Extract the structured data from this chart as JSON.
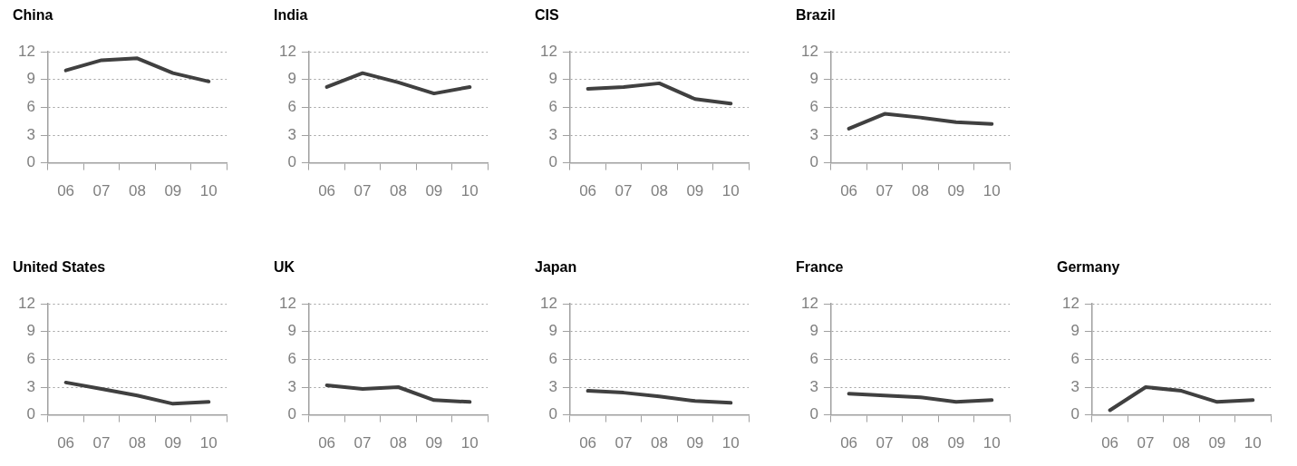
{
  "chart_data": [
    {
      "type": "line",
      "title": "China",
      "categories": [
        "06",
        "07",
        "08",
        "09",
        "10"
      ],
      "series": [
        {
          "color": "#404040",
          "values": [
            10.0,
            11.1,
            11.3,
            9.7,
            8.8
          ]
        }
      ],
      "ylim": [
        0,
        12
      ],
      "yticks": [
        0,
        3,
        6,
        9,
        12
      ],
      "grid": "y",
      "legend": false,
      "marker": "none",
      "line_style": "solid"
    },
    {
      "type": "line",
      "title": "India",
      "categories": [
        "06",
        "07",
        "08",
        "09",
        "10"
      ],
      "series": [
        {
          "color": "#404040",
          "values": [
            8.2,
            9.7,
            8.7,
            7.5,
            8.2
          ]
        }
      ],
      "ylim": [
        0,
        12
      ],
      "yticks": [
        0,
        3,
        6,
        9,
        12
      ],
      "grid": "y",
      "legend": false,
      "marker": "none",
      "line_style": "solid"
    },
    {
      "type": "line",
      "title": "CIS",
      "categories": [
        "06",
        "07",
        "08",
        "09",
        "10"
      ],
      "series": [
        {
          "color": "#404040",
          "values": [
            8.0,
            8.2,
            8.6,
            6.9,
            6.4
          ]
        }
      ],
      "ylim": [
        0,
        12
      ],
      "yticks": [
        0,
        3,
        6,
        9,
        12
      ],
      "grid": "y",
      "legend": false,
      "marker": "none",
      "line_style": "solid"
    },
    {
      "type": "line",
      "title": "Brazil",
      "categories": [
        "06",
        "07",
        "08",
        "09",
        "10"
      ],
      "series": [
        {
          "color": "#404040",
          "values": [
            3.7,
            5.3,
            4.9,
            4.4,
            4.2
          ]
        }
      ],
      "ylim": [
        0,
        12
      ],
      "yticks": [
        0,
        3,
        6,
        9,
        12
      ],
      "grid": "y",
      "legend": false,
      "marker": "none",
      "line_style": "solid"
    },
    {
      "type": "line",
      "title": "United States",
      "categories": [
        "06",
        "07",
        "08",
        "09",
        "10"
      ],
      "series": [
        {
          "color": "#404040",
          "values": [
            3.5,
            2.8,
            2.1,
            1.2,
            1.4
          ]
        }
      ],
      "ylim": [
        0,
        12
      ],
      "yticks": [
        0,
        3,
        6,
        9,
        12
      ],
      "grid": "y",
      "legend": false,
      "marker": "none",
      "line_style": "solid"
    },
    {
      "type": "line",
      "title": "UK",
      "categories": [
        "06",
        "07",
        "08",
        "09",
        "10"
      ],
      "series": [
        {
          "color": "#404040",
          "values": [
            3.2,
            2.8,
            3.0,
            1.6,
            1.4
          ]
        }
      ],
      "ylim": [
        0,
        12
      ],
      "yticks": [
        0,
        3,
        6,
        9,
        12
      ],
      "grid": "y",
      "legend": false,
      "marker": "none",
      "line_style": "solid"
    },
    {
      "type": "line",
      "title": "Japan",
      "categories": [
        "06",
        "07",
        "08",
        "09",
        "10"
      ],
      "series": [
        {
          "color": "#404040",
          "values": [
            2.6,
            2.4,
            2.0,
            1.5,
            1.3
          ]
        }
      ],
      "ylim": [
        0,
        12
      ],
      "yticks": [
        0,
        3,
        6,
        9,
        12
      ],
      "grid": "y",
      "legend": false,
      "marker": "none",
      "line_style": "solid"
    },
    {
      "type": "line",
      "title": "France",
      "categories": [
        "06",
        "07",
        "08",
        "09",
        "10"
      ],
      "series": [
        {
          "color": "#404040",
          "values": [
            2.3,
            2.1,
            1.9,
            1.4,
            1.6
          ]
        }
      ],
      "ylim": [
        0,
        12
      ],
      "yticks": [
        0,
        3,
        6,
        9,
        12
      ],
      "grid": "y",
      "legend": false,
      "marker": "none",
      "line_style": "solid"
    },
    {
      "type": "line",
      "title": "Germany",
      "categories": [
        "06",
        "07",
        "08",
        "09",
        "10"
      ],
      "series": [
        {
          "color": "#404040",
          "values": [
            0.5,
            3.0,
            2.6,
            1.4,
            1.6
          ]
        }
      ],
      "ylim": [
        0,
        12
      ],
      "yticks": [
        0,
        3,
        6,
        9,
        12
      ],
      "grid": "y",
      "legend": false,
      "marker": "none",
      "line_style": "solid"
    }
  ]
}
